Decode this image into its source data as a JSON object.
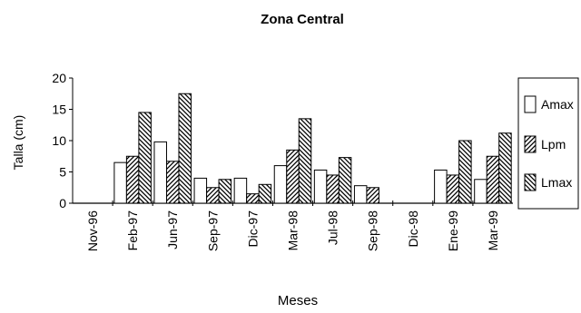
{
  "chart_data": {
    "type": "bar",
    "title": "Zona Central",
    "xlabel": "Meses",
    "ylabel": "Talla (cm)",
    "ylim": [
      0,
      20
    ],
    "yticks": [
      0,
      5,
      10,
      15,
      20
    ],
    "categories": [
      "Nov-96",
      "Feb-97",
      "Jun-97",
      "Sep-97",
      "Dic-97",
      "Mar-98",
      "Jul-98",
      "Sep-98",
      "Dic-98",
      "Ene-99",
      "Mar-99"
    ],
    "series": [
      {
        "name": "Amax",
        "pattern": "none",
        "values": [
          null,
          6.5,
          9.8,
          4.0,
          4.0,
          6.0,
          5.3,
          2.8,
          null,
          5.3,
          3.8
        ]
      },
      {
        "name": "Lpm",
        "pattern": "diagonal-up",
        "values": [
          null,
          7.5,
          6.7,
          2.5,
          1.5,
          8.5,
          4.5,
          2.5,
          null,
          4.5,
          7.5
        ]
      },
      {
        "name": "Lmax",
        "pattern": "diagonal-down",
        "values": [
          null,
          14.5,
          17.5,
          3.8,
          3.0,
          13.5,
          7.3,
          null,
          null,
          10.0,
          11.2
        ]
      }
    ],
    "legend_position": "right",
    "grid": false
  }
}
